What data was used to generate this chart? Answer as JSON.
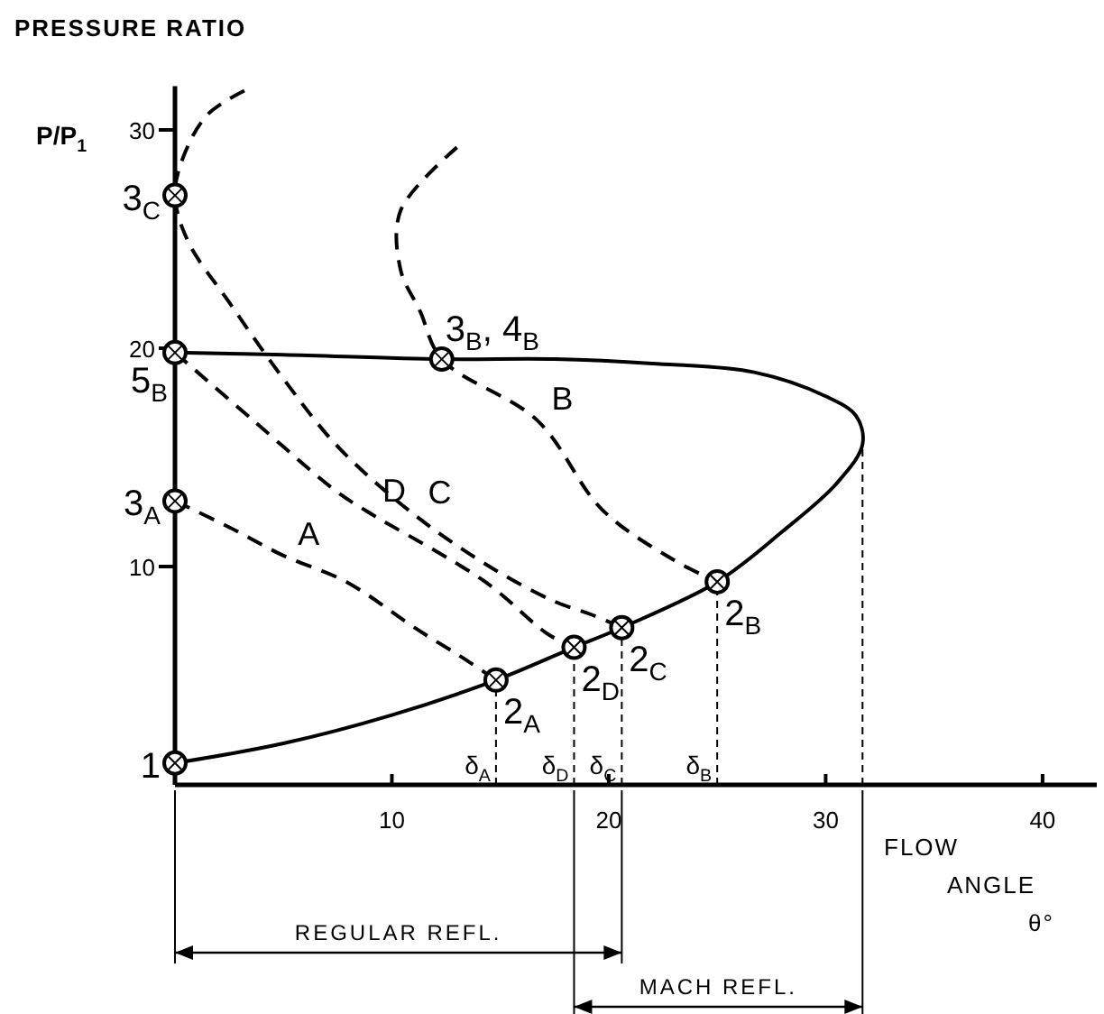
{
  "chart_data": {
    "type": "line",
    "ylabel": "PRESSURE RATIO",
    "xlabel": "FLOW ANGLE θ°",
    "xlim": [
      0,
      42.5
    ],
    "ylim": [
      0,
      32
    ],
    "xticks": [
      10,
      20,
      30,
      40
    ],
    "yticks": [
      10,
      20,
      30
    ],
    "grid": false,
    "series": [
      {
        "color": "#000000",
        "line_style": "solid",
        "x": [
          0,
          5,
          10,
          14.8,
          18.4,
          20.6,
          25,
          28,
          30.5,
          31.7,
          31.4,
          30,
          26.7,
          22,
          17.5,
          12.3,
          5,
          0
        ],
        "values": [
          1,
          1.9,
          3.2,
          4.8,
          6.3,
          7.2,
          9.3,
          11.6,
          13.8,
          15.6,
          16.9,
          17.8,
          18.9,
          19.3,
          19.5,
          19.5,
          19.7,
          19.8
        ]
      },
      {
        "color": "#000000",
        "line_style": "dashed",
        "x": [
          0,
          2.5,
          5,
          7.9,
          11.2,
          13.3,
          14.8
        ],
        "values": [
          13,
          11.8,
          10.5,
          9.3,
          7.1,
          5.8,
          4.8
        ]
      },
      {
        "color": "#000000",
        "line_style": "dashed",
        "x": [
          13,
          10.4,
          10.4,
          11.3,
          12.3,
          16.7,
          19.7,
          23,
          25
        ],
        "values": [
          29.2,
          26.3,
          23.6,
          21.7,
          19.5,
          16.7,
          12.6,
          10.3,
          9.3
        ]
      },
      {
        "color": "#000000",
        "line_style": "dashed",
        "x": [
          3.2,
          1.5,
          0.4,
          0,
          0.6,
          2.5,
          5,
          7.5,
          11,
          14.5,
          17.5,
          19.2,
          20.6
        ],
        "values": [
          31.8,
          30.7,
          28.8,
          27,
          24.9,
          22.1,
          18.6,
          15.5,
          12.4,
          10,
          8.4,
          7.8,
          7.2
        ]
      },
      {
        "color": "#000000",
        "line_style": "dashed",
        "x": [
          0,
          3.6,
          7.5,
          8.9,
          14.3,
          17.2,
          18.4
        ],
        "values": [
          19.8,
          16.7,
          13.4,
          12.5,
          9.3,
          6.9,
          6.3
        ]
      },
      {
        "color": "#000000",
        "line_style": "dotted",
        "x": [
          14.8,
          14.8
        ],
        "values": [
          0,
          4.8
        ]
      },
      {
        "color": "#000000",
        "line_style": "dotted",
        "x": [
          18.4,
          18.4
        ],
        "values": [
          0,
          6.3
        ]
      },
      {
        "color": "#000000",
        "line_style": "dotted",
        "x": [
          20.6,
          20.6
        ],
        "values": [
          0,
          7.2
        ]
      },
      {
        "color": "#000000",
        "line_style": "dotted",
        "x": [
          25,
          25
        ],
        "values": [
          0,
          9.3
        ]
      },
      {
        "color": "#000000",
        "line_style": "dotted",
        "x": [
          31.7,
          31.7
        ],
        "values": [
          0,
          15.6
        ]
      },
      {
        "type": "scatter",
        "color": "#000000",
        "marker": "circle",
        "x": [
          0,
          0,
          0,
          0,
          12.3,
          14.8,
          18.4,
          20.6,
          25
        ],
        "values": [
          1,
          27,
          19.8,
          13,
          19.5,
          4.8,
          6.3,
          7.2,
          9.3
        ]
      }
    ],
    "annotations": [
      "P/P$_{1}$",
      "REGULAR REFL.",
      "MACH REFL.",
      {
        "text": "1",
        "x": 0,
        "y": 1
      },
      {
        "text": "3$_{C}$",
        "x": 0,
        "y": 27
      },
      {
        "text": "5$_{B}$",
        "x": 0,
        "y": 19.8
      },
      {
        "text": "3$_{A}$",
        "x": 0,
        "y": 13
      },
      {
        "text": "3$_{B}$, 4$_{B}$",
        "x": 12.3,
        "y": 19.5
      },
      {
        "text": "2$_{A}$",
        "x": 14.8,
        "y": 4.8
      },
      {
        "text": "2$_{D}$",
        "x": 18.4,
        "y": 6.3
      },
      {
        "text": "2$_{C}$",
        "x": 20.6,
        "y": 7.2
      },
      {
        "text": "2$_{B}$",
        "x": 25,
        "y": 9.3
      },
      {
        "text": "A",
        "x": 5,
        "y": 10.5
      },
      {
        "text": "D",
        "x": 8.9,
        "y": 12.5
      },
      {
        "text": "C",
        "x": 11,
        "y": 12.4
      },
      {
        "text": "B",
        "x": 16.7,
        "y": 16.7
      },
      {
        "text": "δ$_{A}$",
        "x": 14.8,
        "y": 0
      },
      {
        "text": "δ$_{D}$",
        "x": 18.4,
        "y": 0
      },
      {
        "text": "δ$_{C}$",
        "x": 20.6,
        "y": 0
      },
      {
        "text": "δ$_{B}$",
        "x": 25,
        "y": 0
      }
    ]
  }
}
